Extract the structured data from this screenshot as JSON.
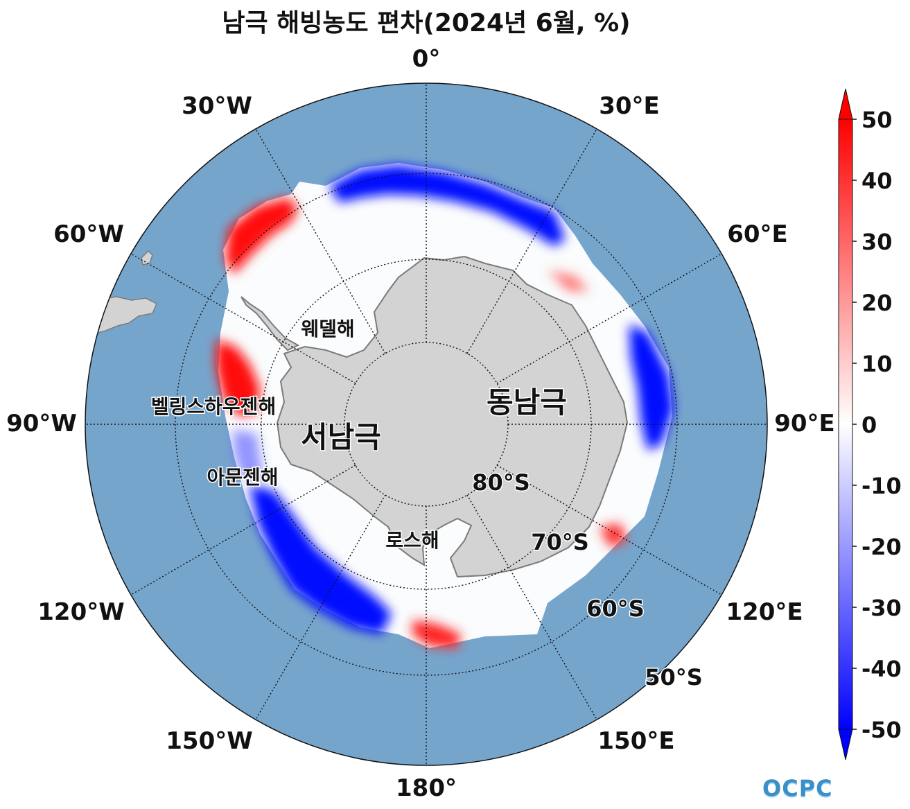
{
  "title": "남극 해빙농도 편차(2024년 6월, %)",
  "map": {
    "projection": "south-polar-stereographic",
    "ocean_color": "#76a5cc",
    "land_color": "#d3d3d3",
    "coast_color": "#7a7a7a",
    "longitude_labels": [
      {
        "deg": 0,
        "text": "0°"
      },
      {
        "deg": 30,
        "text": "30°E"
      },
      {
        "deg": 60,
        "text": "60°E"
      },
      {
        "deg": 90,
        "text": "90°E"
      },
      {
        "deg": 120,
        "text": "120°E"
      },
      {
        "deg": 150,
        "text": "150°E"
      },
      {
        "deg": 180,
        "text": "180°"
      },
      {
        "deg": -150,
        "text": "150°W"
      },
      {
        "deg": -120,
        "text": "120°W"
      },
      {
        "deg": -90,
        "text": "90°W"
      },
      {
        "deg": -60,
        "text": "60°W"
      },
      {
        "deg": -30,
        "text": "30°W"
      }
    ],
    "latitude_labels": [
      {
        "lat": -80,
        "text": "80°S"
      },
      {
        "lat": -70,
        "text": "70°S"
      },
      {
        "lat": -60,
        "text": "60°S"
      },
      {
        "lat": -50,
        "text": "50°S"
      }
    ],
    "regions": [
      {
        "name": "weddell",
        "text": "웨델해"
      },
      {
        "name": "bellingshausen",
        "text": "벨링스하우젠해"
      },
      {
        "name": "amundsen",
        "text": "아문젠해"
      },
      {
        "name": "ross",
        "text": "로스해"
      },
      {
        "name": "west-antarctica",
        "text": "서남극"
      },
      {
        "name": "east-antarctica",
        "text": "동남극"
      }
    ]
  },
  "colorbar": {
    "min": -50,
    "max": 50,
    "ticks": [
      "50",
      "40",
      "30",
      "20",
      "10",
      "0",
      "-10",
      "-20",
      "-30",
      "-40",
      "-50"
    ],
    "colors": {
      "low": "#0000ff",
      "mid": "#ffffff",
      "high": "#ff0000"
    },
    "extend": "both"
  },
  "logo": {
    "text": "OCPC"
  }
}
